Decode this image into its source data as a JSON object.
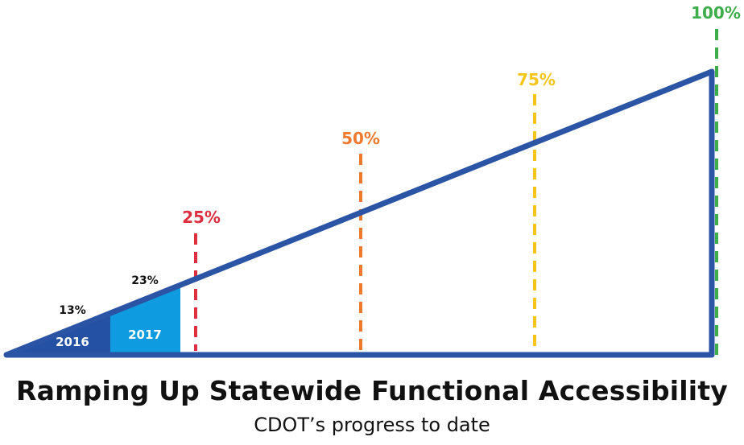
{
  "title": "Ramping Up Statewide Functional Accessibility",
  "subtitle": "CDOT’s progress to date",
  "colors": {
    "ramp_outline": "#2b54a5",
    "segment_2016": "#2451a3",
    "segment_2017": "#0f9be0",
    "marker_25": "#dd2f3f",
    "marker_50": "#ef7a2e",
    "marker_75": "#f5c518",
    "marker_100": "#3cad4a"
  },
  "segments": [
    {
      "year": "2016",
      "progress_label": "13%",
      "progress": 13
    },
    {
      "year": "2017",
      "progress_label": "23%",
      "progress": 23
    }
  ],
  "milestones": [
    {
      "label": "25%",
      "value": 25,
      "color_key": "marker_25"
    },
    {
      "label": "50%",
      "value": 50,
      "color_key": "marker_50"
    },
    {
      "label": "75%",
      "value": 75,
      "color_key": "marker_75"
    },
    {
      "label": "100%",
      "value": 100,
      "color_key": "marker_100"
    }
  ]
}
